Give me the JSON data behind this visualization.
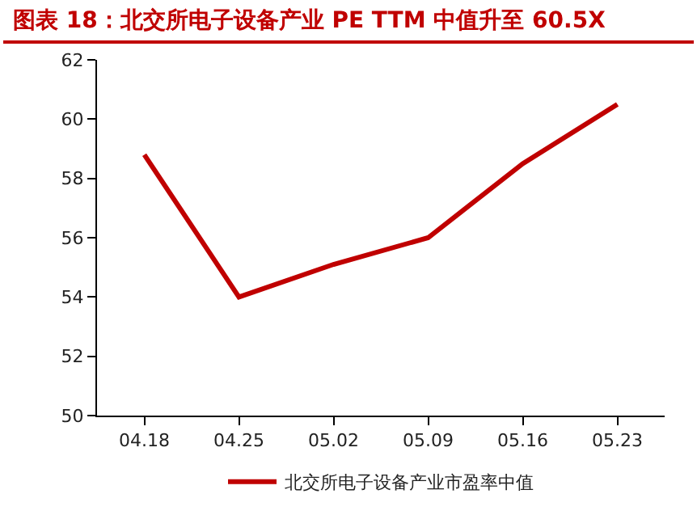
{
  "chart_data": {
    "type": "line",
    "title": "图表 18：北交所电子设备产业 PE TTM 中值升至 60.5X",
    "categories": [
      "04.18",
      "04.25",
      "05.02",
      "05.09",
      "05.16",
      "05.23"
    ],
    "series": [
      {
        "name": "北交所电子设备产业市盈率中值",
        "color": "#c00000",
        "values": [
          58.8,
          54.0,
          55.1,
          56.0,
          58.5,
          60.5
        ]
      }
    ],
    "ylim": [
      50,
      62
    ],
    "yticks": [
      50,
      52,
      54,
      56,
      58,
      60,
      62
    ],
    "grid": false,
    "legend": "bottom",
    "marker": "none",
    "line_style": "solid"
  }
}
